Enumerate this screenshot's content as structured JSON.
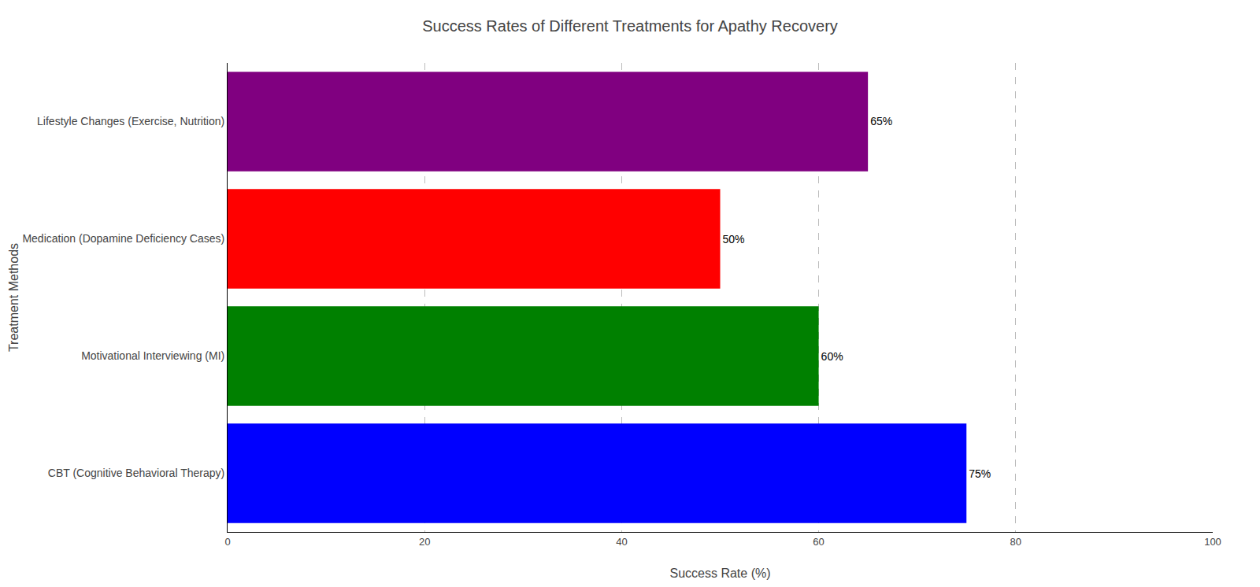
{
  "chart_data": {
    "type": "bar",
    "orientation": "horizontal",
    "title": "Success Rates of Different Treatments for Apathy Recovery",
    "xlabel": "Success Rate (%)",
    "ylabel": "Treatment Methods",
    "categories": [
      "CBT (Cognitive Behavioral Therapy)",
      "Motivational Interviewing (MI)",
      "Medication (Dopamine Deficiency Cases)",
      "Lifestyle Changes (Exercise, Nutrition)"
    ],
    "values": [
      75,
      60,
      50,
      65
    ],
    "value_labels": [
      "75%",
      "60%",
      "50%",
      "65%"
    ],
    "data_labels": true,
    "colors": [
      "blue",
      "green",
      "red",
      "purple"
    ],
    "xlim": [
      0,
      100
    ],
    "xticks": [
      0,
      20,
      40,
      60,
      80,
      100
    ],
    "grid": true
  }
}
